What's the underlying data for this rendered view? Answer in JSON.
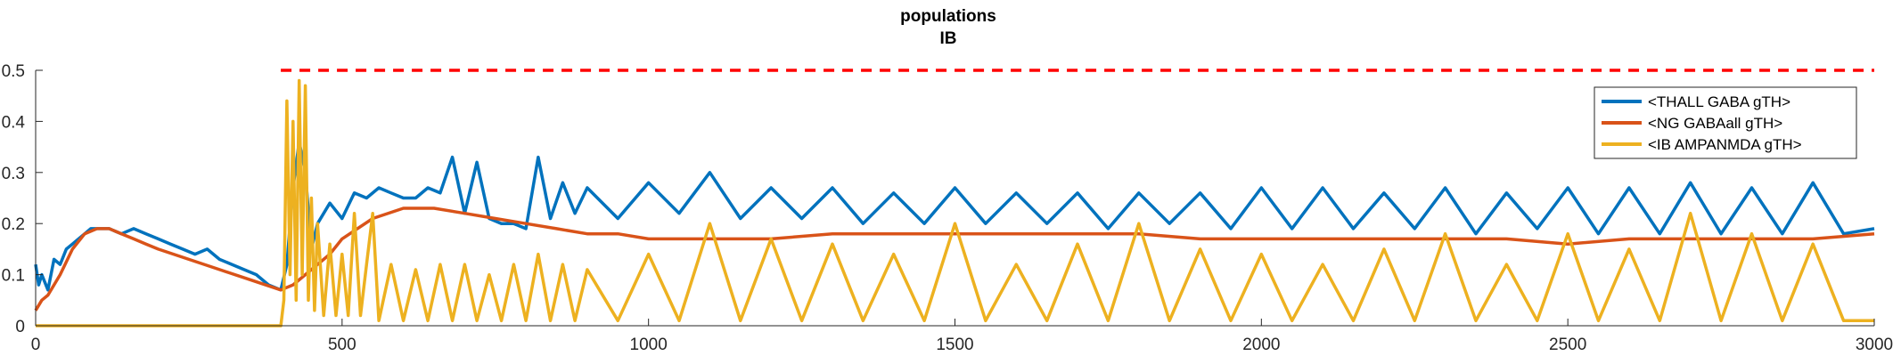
{
  "chart_data": {
    "type": "line",
    "title": [
      "populations",
      "IB"
    ],
    "xlim": [
      0,
      3000
    ],
    "ylim": [
      0,
      0.5
    ],
    "x_ticks": [
      0,
      500,
      1000,
      1500,
      2000,
      2500,
      3000
    ],
    "x_tick_labels": [
      "0",
      "500",
      "1000",
      "1500",
      "2000",
      "2500",
      "3000"
    ],
    "y_ticks": [
      0,
      0.1,
      0.2,
      0.3,
      0.4,
      0.5
    ],
    "y_tick_labels": [
      "0",
      "0.1",
      "0.2",
      "0.3",
      "0.4",
      "0.5"
    ],
    "grid": false,
    "legend_position": "top-right",
    "colors": {
      "thall": "#0072BD",
      "ng": "#D95319",
      "ib": "#EDB120",
      "reference": "#FF0000"
    },
    "reference_line": {
      "y": 0.5,
      "x": [
        400,
        3000
      ],
      "style": "dashed"
    },
    "series": [
      {
        "name": "<THALL GABA gTH>",
        "color": "#0072BD",
        "x": [
          0,
          5,
          10,
          20,
          30,
          40,
          50,
          60,
          70,
          80,
          90,
          100,
          120,
          140,
          160,
          180,
          200,
          220,
          240,
          260,
          280,
          300,
          320,
          340,
          360,
          380,
          400,
          410,
          420,
          430,
          440,
          450,
          460,
          480,
          500,
          520,
          540,
          560,
          580,
          600,
          620,
          640,
          660,
          680,
          700,
          720,
          740,
          760,
          780,
          800,
          820,
          840,
          860,
          880,
          900,
          950,
          1000,
          1050,
          1100,
          1150,
          1200,
          1250,
          1300,
          1350,
          1400,
          1450,
          1500,
          1550,
          1600,
          1650,
          1700,
          1750,
          1800,
          1850,
          1900,
          1950,
          2000,
          2050,
          2100,
          2150,
          2200,
          2250,
          2300,
          2350,
          2400,
          2450,
          2500,
          2550,
          2600,
          2650,
          2700,
          2750,
          2800,
          2850,
          2900,
          2950,
          3000
        ],
        "values": [
          0.12,
          0.08,
          0.1,
          0.07,
          0.13,
          0.12,
          0.15,
          0.16,
          0.17,
          0.18,
          0.19,
          0.19,
          0.19,
          0.18,
          0.19,
          0.18,
          0.17,
          0.16,
          0.15,
          0.14,
          0.15,
          0.13,
          0.12,
          0.11,
          0.1,
          0.08,
          0.07,
          0.12,
          0.27,
          0.36,
          0.3,
          0.15,
          0.2,
          0.24,
          0.21,
          0.26,
          0.25,
          0.27,
          0.26,
          0.25,
          0.25,
          0.27,
          0.26,
          0.33,
          0.22,
          0.32,
          0.21,
          0.2,
          0.2,
          0.19,
          0.33,
          0.21,
          0.28,
          0.22,
          0.27,
          0.21,
          0.28,
          0.22,
          0.3,
          0.21,
          0.27,
          0.21,
          0.27,
          0.2,
          0.26,
          0.2,
          0.27,
          0.2,
          0.26,
          0.2,
          0.26,
          0.19,
          0.26,
          0.2,
          0.26,
          0.19,
          0.27,
          0.19,
          0.27,
          0.19,
          0.26,
          0.19,
          0.27,
          0.18,
          0.26,
          0.19,
          0.27,
          0.18,
          0.27,
          0.18,
          0.28,
          0.18,
          0.27,
          0.18,
          0.28,
          0.18,
          0.19
        ]
      },
      {
        "name": "<NG GABAall gTH>",
        "color": "#D95319",
        "x": [
          0,
          10,
          20,
          40,
          60,
          80,
          100,
          120,
          140,
          160,
          180,
          200,
          250,
          300,
          350,
          400,
          420,
          440,
          460,
          480,
          500,
          550,
          600,
          650,
          700,
          750,
          800,
          850,
          900,
          950,
          1000,
          1100,
          1200,
          1300,
          1400,
          1500,
          1600,
          1700,
          1800,
          1900,
          2000,
          2100,
          2200,
          2300,
          2400,
          2500,
          2600,
          2700,
          2800,
          2900,
          3000
        ],
        "values": [
          0.03,
          0.05,
          0.06,
          0.1,
          0.15,
          0.18,
          0.19,
          0.19,
          0.18,
          0.17,
          0.16,
          0.15,
          0.13,
          0.11,
          0.09,
          0.07,
          0.08,
          0.1,
          0.12,
          0.14,
          0.17,
          0.21,
          0.23,
          0.23,
          0.22,
          0.21,
          0.2,
          0.19,
          0.18,
          0.18,
          0.17,
          0.17,
          0.17,
          0.18,
          0.18,
          0.18,
          0.18,
          0.18,
          0.18,
          0.17,
          0.17,
          0.17,
          0.17,
          0.17,
          0.17,
          0.16,
          0.17,
          0.17,
          0.17,
          0.17,
          0.18
        ]
      },
      {
        "name": "<IB AMPANMDA gTH>",
        "color": "#EDB120",
        "x": [
          0,
          100,
          200,
          300,
          400,
          405,
          410,
          415,
          420,
          425,
          430,
          435,
          440,
          445,
          450,
          455,
          460,
          470,
          480,
          490,
          500,
          510,
          520,
          530,
          540,
          550,
          560,
          580,
          600,
          620,
          640,
          660,
          680,
          700,
          720,
          740,
          760,
          780,
          800,
          820,
          840,
          860,
          880,
          900,
          950,
          1000,
          1050,
          1100,
          1150,
          1200,
          1250,
          1300,
          1350,
          1400,
          1450,
          1500,
          1550,
          1600,
          1650,
          1700,
          1750,
          1800,
          1850,
          1900,
          1950,
          2000,
          2050,
          2100,
          2150,
          2200,
          2250,
          2300,
          2350,
          2400,
          2450,
          2500,
          2550,
          2600,
          2650,
          2700,
          2750,
          2800,
          2850,
          2900,
          2950,
          3000
        ],
        "values": [
          0,
          0,
          0,
          0,
          0,
          0.05,
          0.44,
          0.1,
          0.4,
          0.05,
          0.48,
          0.1,
          0.47,
          0.05,
          0.25,
          0.03,
          0.2,
          0.02,
          0.16,
          0.02,
          0.14,
          0.02,
          0.22,
          0.02,
          0.12,
          0.22,
          0.01,
          0.12,
          0.01,
          0.11,
          0.01,
          0.12,
          0.01,
          0.12,
          0.01,
          0.1,
          0.01,
          0.12,
          0.01,
          0.14,
          0.01,
          0.12,
          0.01,
          0.11,
          0.01,
          0.14,
          0.01,
          0.2,
          0.01,
          0.17,
          0.01,
          0.16,
          0.01,
          0.14,
          0.01,
          0.2,
          0.01,
          0.12,
          0.01,
          0.16,
          0.01,
          0.2,
          0.01,
          0.15,
          0.01,
          0.14,
          0.01,
          0.12,
          0.01,
          0.15,
          0.01,
          0.18,
          0.01,
          0.12,
          0.01,
          0.18,
          0.01,
          0.15,
          0.01,
          0.22,
          0.01,
          0.18,
          0.01,
          0.16,
          0.01,
          0.01
        ]
      }
    ]
  }
}
